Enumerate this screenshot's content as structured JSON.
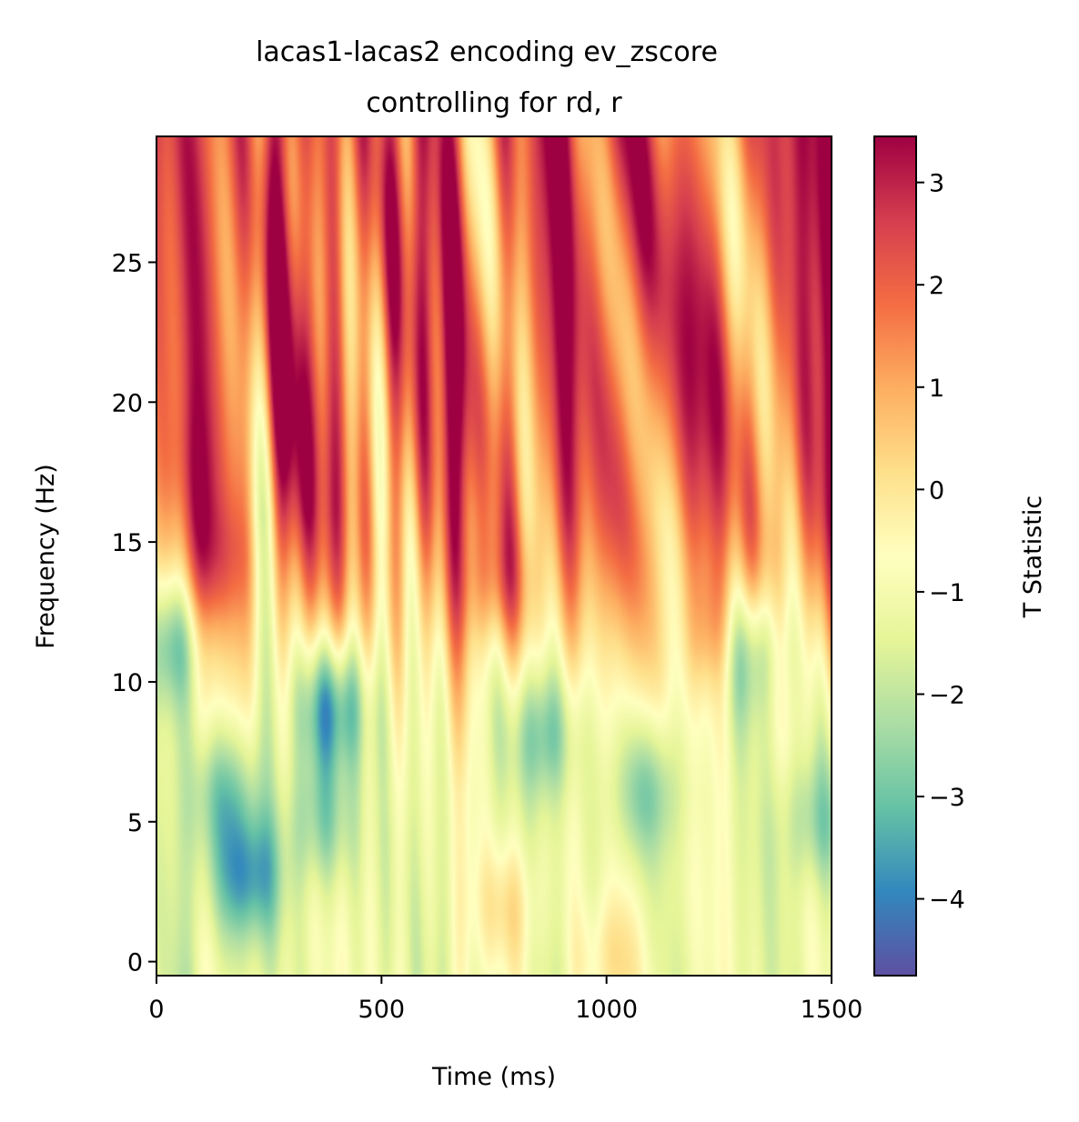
{
  "chart_data": {
    "type": "heatmap",
    "title": "lacas1-lacas2 encoding ev_zscore",
    "subtitle": "controlling for rd, r",
    "xlabel": "Time (ms)",
    "ylabel": "Frequency (Hz)",
    "xlim": [
      0,
      1500
    ],
    "ylim": [
      -0.5,
      29.5
    ],
    "x_ticks": [
      0,
      500,
      1000,
      1500
    ],
    "y_ticks": [
      0,
      5,
      10,
      15,
      20,
      25
    ],
    "colormap": "Spectral_r",
    "colorbar": {
      "label": "T Statistic",
      "range": [
        -4.75,
        3.45
      ],
      "ticks": [
        3,
        2,
        1,
        0,
        -1,
        -2,
        -3,
        -4
      ],
      "tick_labels": [
        "3",
        "2",
        "1",
        "0",
        "−1",
        "−2",
        "−3",
        "−4"
      ]
    },
    "regions": [
      {
        "time": 200,
        "freq": 3,
        "t": -4.2
      },
      {
        "time": 150,
        "freq": 6,
        "t": -3.2
      },
      {
        "time": 390,
        "freq": 9,
        "t": -4.3
      },
      {
        "time": 370,
        "freq": 5,
        "t": -3.0
      },
      {
        "time": 860,
        "freq": 8,
        "t": -3.1
      },
      {
        "time": 1090,
        "freq": 6,
        "t": -3.0
      },
      {
        "time": 1310,
        "freq": 11,
        "t": -3.3
      },
      {
        "time": 1470,
        "freq": 5,
        "t": -2.8
      },
      {
        "time": 30,
        "freq": 11,
        "t": -2.5
      },
      {
        "time": 780,
        "freq": 2,
        "t": 0.3
      },
      {
        "time": 1000,
        "freq": 0,
        "t": 0.2
      },
      {
        "time": 60,
        "freq": 18,
        "t": 2.3
      },
      {
        "time": 140,
        "freq": 15,
        "t": 2.2
      },
      {
        "time": 750,
        "freq": 14,
        "t": 2.3
      },
      {
        "time": 1260,
        "freq": 12,
        "t": 2.4
      }
    ]
  }
}
